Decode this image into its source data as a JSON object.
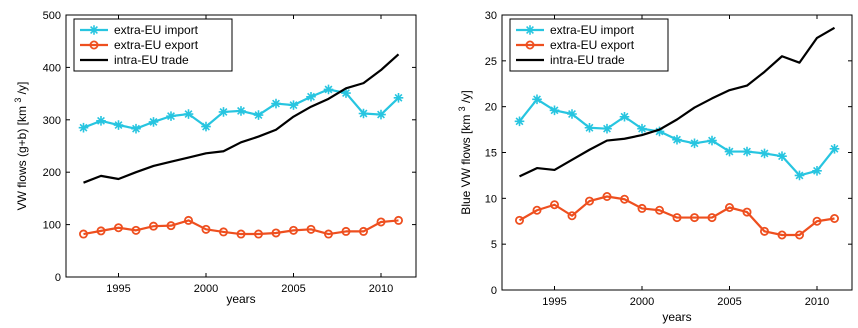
{
  "chart_data": [
    {
      "type": "line",
      "xlabel": "years",
      "ylabel": "VW flows (g+b) [km",
      "ylabel_sup": "3",
      "ylabel_unit_tail": "/y]",
      "xlim": [
        1992,
        2012
      ],
      "ylim": [
        0,
        500
      ],
      "xticks": [
        1995,
        2000,
        2005,
        2010
      ],
      "yticks": [
        0,
        100,
        200,
        300,
        400,
        500
      ],
      "grid": false,
      "legend_position": "top-left",
      "x": [
        1993,
        1994,
        1995,
        1996,
        1997,
        1998,
        1999,
        2000,
        2001,
        2002,
        2003,
        2004,
        2005,
        2006,
        2007,
        2008,
        2009,
        2010,
        2011
      ],
      "series": [
        {
          "name": "extra-EU import",
          "color": "#27c5e0",
          "marker": "star",
          "values": [
            285,
            298,
            290,
            283,
            296,
            307,
            311,
            287,
            315,
            317,
            309,
            331,
            328,
            344,
            358,
            351,
            312,
            310,
            342
          ]
        },
        {
          "name": "extra-EU export",
          "color": "#ee4f1f",
          "marker": "circle",
          "values": [
            82,
            88,
            94,
            89,
            97,
            98,
            108,
            91,
            86,
            82,
            82,
            84,
            89,
            91,
            82,
            87,
            87,
            105,
            108
          ]
        },
        {
          "name": "intra-EU trade",
          "color": "#000000",
          "marker": "none",
          "values": [
            180,
            193,
            187,
            200,
            212,
            220,
            228,
            236,
            240,
            257,
            268,
            281,
            306,
            325,
            340,
            360,
            370,
            395,
            425
          ]
        }
      ]
    },
    {
      "type": "line",
      "xlabel": "years",
      "ylabel": "Blue VW flows [km",
      "ylabel_sup": "3",
      "ylabel_unit_tail": "/y]",
      "xlim": [
        1992,
        2012
      ],
      "ylim": [
        0,
        30
      ],
      "xticks": [
        1995,
        2000,
        2005,
        2010
      ],
      "yticks": [
        0,
        5,
        10,
        15,
        20,
        25,
        30
      ],
      "grid": false,
      "legend_position": "top-left",
      "x": [
        1993,
        1994,
        1995,
        1996,
        1997,
        1998,
        1999,
        2000,
        2001,
        2002,
        2003,
        2004,
        2005,
        2006,
        2007,
        2008,
        2009,
        2010,
        2011
      ],
      "series": [
        {
          "name": "extra-EU import",
          "color": "#27c5e0",
          "marker": "star",
          "values": [
            18.4,
            20.8,
            19.6,
            19.2,
            17.7,
            17.6,
            18.9,
            17.6,
            17.3,
            16.4,
            16.0,
            16.3,
            15.1,
            15.1,
            14.9,
            14.6,
            12.5,
            13.0,
            15.4
          ]
        },
        {
          "name": "extra-EU export",
          "color": "#ee4f1f",
          "marker": "circle",
          "values": [
            7.6,
            8.7,
            9.3,
            8.1,
            9.7,
            10.2,
            9.9,
            8.9,
            8.7,
            7.9,
            7.9,
            7.9,
            9.0,
            8.5,
            6.4,
            6.0,
            6.0,
            7.5,
            7.8
          ]
        },
        {
          "name": "intra-EU trade",
          "color": "#000000",
          "marker": "none",
          "values": [
            12.4,
            13.3,
            13.1,
            14.2,
            15.3,
            16.3,
            16.5,
            16.9,
            17.5,
            18.6,
            19.9,
            20.9,
            21.8,
            22.3,
            23.8,
            25.5,
            24.8,
            27.5,
            28.6
          ]
        }
      ]
    }
  ]
}
